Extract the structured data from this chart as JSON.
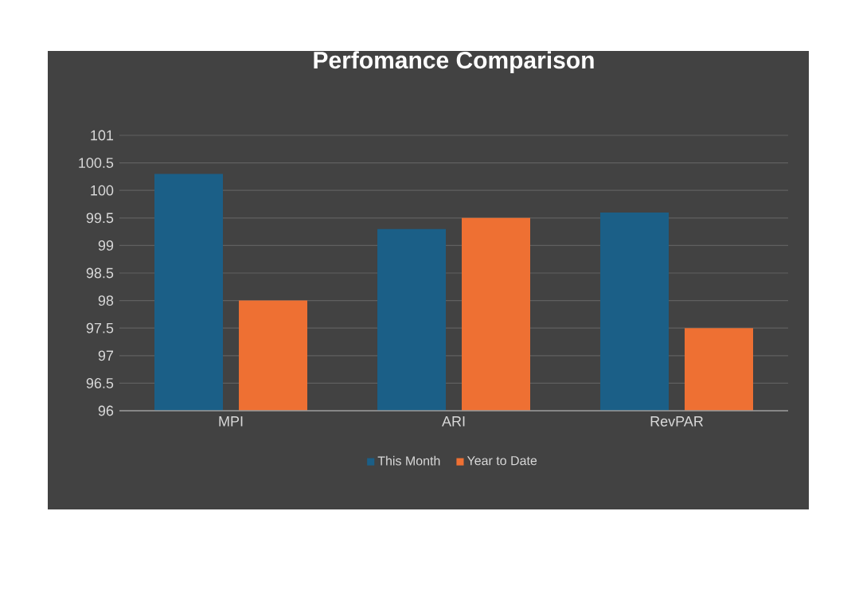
{
  "chart_data": {
    "type": "bar",
    "title": "Perfomance Comparison",
    "categories": [
      "MPI",
      "ARI",
      "RevPAR"
    ],
    "series": [
      {
        "name": "This Month",
        "color": "#1b5f87",
        "values": [
          100.3,
          99.3,
          99.6
        ]
      },
      {
        "name": "Year to Date",
        "color": "#ee7033",
        "values": [
          98.0,
          99.5,
          97.5
        ]
      }
    ],
    "ylim": [
      96,
      101
    ],
    "yticks": [
      96,
      96.5,
      97,
      97.5,
      98,
      98.5,
      99,
      99.5,
      100,
      100.5,
      101
    ],
    "grid": "y",
    "legend": "bottom"
  }
}
